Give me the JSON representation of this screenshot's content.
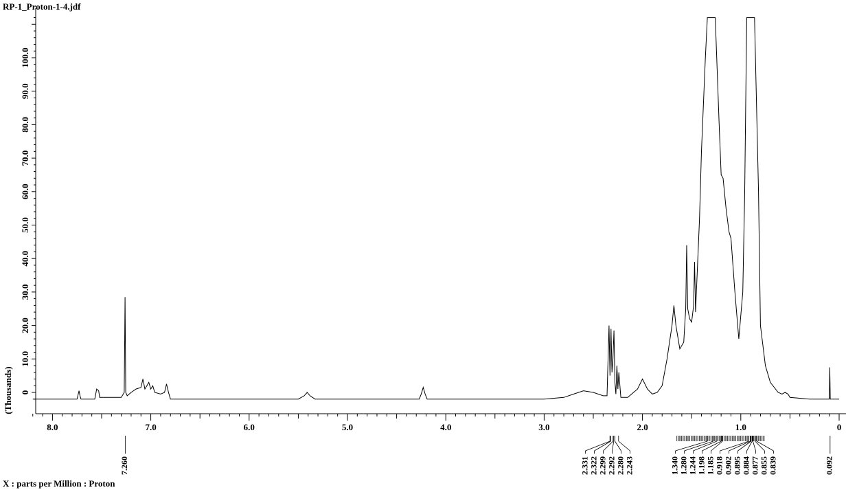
{
  "chart_data": {
    "type": "line",
    "title": "RP-1_Proton-1-4.jdf",
    "xlabel": "X : parts per Million : Proton",
    "ylabel": "(Thousands)",
    "xlim": [
      8.2,
      0.0
    ],
    "ylim": [
      -3,
      112
    ],
    "x_ticks": [
      "8.0",
      "7.0",
      "6.0",
      "5.0",
      "4.0",
      "3.0",
      "2.0",
      "1.0",
      "0"
    ],
    "x_tick_values": [
      8.0,
      7.0,
      6.0,
      5.0,
      4.0,
      3.0,
      2.0,
      1.0,
      0.0
    ],
    "y_ticks": [
      "0",
      "10.0",
      "20.0",
      "30.0",
      "40.0",
      "50.0",
      "60.0",
      "70.0",
      "80.0",
      "90.0",
      "100.0"
    ],
    "y_tick_values": [
      0,
      10,
      20,
      30,
      40,
      50,
      60,
      70,
      80,
      90,
      100
    ],
    "grid": false,
    "series": [
      {
        "values_ppm_intensity": [
          [
            8.2,
            -2
          ],
          [
            7.75,
            -2
          ],
          [
            7.73,
            0.5
          ],
          [
            7.72,
            -1
          ],
          [
            7.71,
            -2
          ],
          [
            7.57,
            -2
          ],
          [
            7.55,
            1
          ],
          [
            7.53,
            0.5
          ],
          [
            7.52,
            -1.5
          ],
          [
            7.3,
            -1.5
          ],
          [
            7.27,
            0
          ],
          [
            7.262,
            28.5
          ],
          [
            7.255,
            0
          ],
          [
            7.24,
            -1
          ],
          [
            7.2,
            0
          ],
          [
            7.15,
            1
          ],
          [
            7.1,
            1.5
          ],
          [
            7.08,
            4
          ],
          [
            7.06,
            1
          ],
          [
            7.04,
            2
          ],
          [
            7.02,
            3
          ],
          [
            7.0,
            1
          ],
          [
            6.98,
            2
          ],
          [
            6.96,
            0
          ],
          [
            6.9,
            -0.5
          ],
          [
            6.86,
            0
          ],
          [
            6.84,
            2.5
          ],
          [
            6.82,
            0
          ],
          [
            6.8,
            -2
          ],
          [
            5.5,
            -2
          ],
          [
            5.44,
            -1
          ],
          [
            5.41,
            0
          ],
          [
            5.38,
            -1
          ],
          [
            5.33,
            -2
          ],
          [
            4.27,
            -2
          ],
          [
            4.25,
            -0.5
          ],
          [
            4.23,
            1.5
          ],
          [
            4.21,
            -0.5
          ],
          [
            4.19,
            -2
          ],
          [
            3.0,
            -2
          ],
          [
            2.8,
            -1.5
          ],
          [
            2.7,
            -0.5
          ],
          [
            2.6,
            0.5
          ],
          [
            2.5,
            0
          ],
          [
            2.4,
            -1
          ],
          [
            2.36,
            -1
          ],
          [
            2.34,
            20
          ],
          [
            2.33,
            5
          ],
          [
            2.32,
            19
          ],
          [
            2.31,
            6
          ],
          [
            2.3,
            10
          ],
          [
            2.29,
            18.5
          ],
          [
            2.28,
            3
          ],
          [
            2.27,
            -0.5
          ],
          [
            2.26,
            8
          ],
          [
            2.25,
            1
          ],
          [
            2.24,
            6
          ],
          [
            2.22,
            -1.5
          ],
          [
            2.15,
            -1.5
          ],
          [
            2.05,
            1
          ],
          [
            2.0,
            4
          ],
          [
            1.95,
            1
          ],
          [
            1.9,
            -0.5
          ],
          [
            1.85,
            0
          ],
          [
            1.8,
            2
          ],
          [
            1.75,
            10
          ],
          [
            1.7,
            20
          ],
          [
            1.68,
            26
          ],
          [
            1.66,
            20
          ],
          [
            1.62,
            13
          ],
          [
            1.58,
            15
          ],
          [
            1.56,
            25
          ],
          [
            1.55,
            44
          ],
          [
            1.54,
            25
          ],
          [
            1.52,
            22
          ],
          [
            1.5,
            21
          ],
          [
            1.48,
            26
          ],
          [
            1.47,
            39
          ],
          [
            1.46,
            24
          ],
          [
            1.44,
            38
          ],
          [
            1.42,
            52
          ],
          [
            1.4,
            72
          ],
          [
            1.36,
            100
          ],
          [
            1.34,
            112
          ],
          [
            1.26,
            112
          ],
          [
            1.22,
            80
          ],
          [
            1.2,
            65
          ],
          [
            1.18,
            64
          ],
          [
            1.15,
            55
          ],
          [
            1.12,
            48
          ],
          [
            1.1,
            46
          ],
          [
            1.06,
            30
          ],
          [
            1.02,
            16
          ],
          [
            0.98,
            30
          ],
          [
            0.96,
            60
          ],
          [
            0.94,
            112
          ],
          [
            0.86,
            112
          ],
          [
            0.82,
            60
          ],
          [
            0.8,
            20
          ],
          [
            0.75,
            8
          ],
          [
            0.7,
            3
          ],
          [
            0.62,
            0
          ],
          [
            0.58,
            -0.5
          ],
          [
            0.55,
            0
          ],
          [
            0.52,
            -0.5
          ],
          [
            0.5,
            -1.5
          ],
          [
            0.3,
            -2
          ],
          [
            0.1,
            -2
          ],
          [
            0.095,
            7.5
          ],
          [
            0.09,
            -2
          ],
          [
            0.0,
            -2
          ]
        ]
      }
    ],
    "peak_labels": {
      "group_7260": [
        "7.260"
      ],
      "group_2300": [
        "2.331",
        "2.322",
        "2.299",
        "2.292",
        "2.280",
        "2.243"
      ],
      "group_1000": [
        "1.340",
        "1.280",
        "1.244",
        "1.198",
        "1.185",
        "0.918",
        "0.902",
        "0.895",
        "0.884",
        "0.877",
        "0.855",
        "0.839"
      ],
      "group_0092": [
        "0.092"
      ]
    }
  }
}
